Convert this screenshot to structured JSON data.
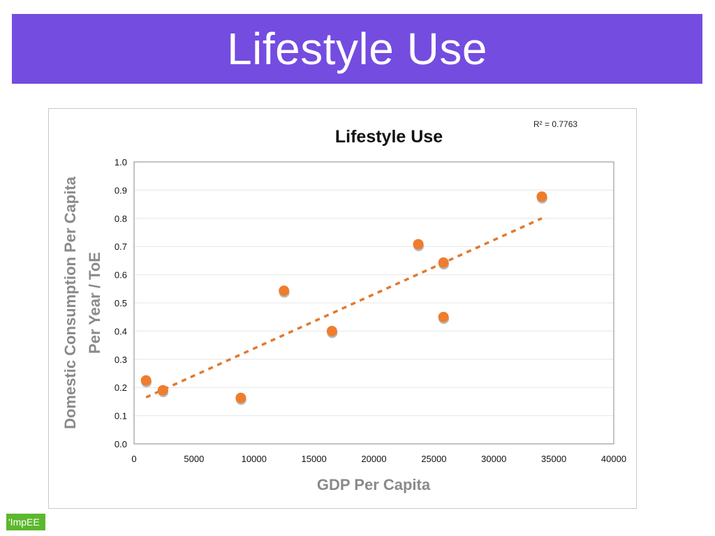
{
  "slide": {
    "title": "Lifestyle Use",
    "logo_text": "'ImpEE"
  },
  "chart_data": {
    "type": "scatter",
    "title": "Lifestyle Use",
    "xlabel": "GDP Per Capita",
    "ylabel_line1": "Domestic Consumption Per Capita",
    "ylabel_line2": "Per Year / ToE",
    "xlim": [
      0,
      40000
    ],
    "ylim": [
      0,
      1.0
    ],
    "x_ticks": [
      0,
      5000,
      10000,
      15000,
      20000,
      25000,
      30000,
      35000,
      40000
    ],
    "y_ticks": [
      0.0,
      0.1,
      0.2,
      0.3,
      0.4,
      0.5,
      0.6,
      0.7,
      0.8,
      0.9,
      1.0
    ],
    "x_tick_labels": [
      "0",
      "5000",
      "10000",
      "15000",
      "20000",
      "25000",
      "30000",
      "35000",
      "40000"
    ],
    "y_tick_labels": [
      "0.0",
      "0.1",
      "0.2",
      "0.3",
      "0.4",
      "0.5",
      "0.6",
      "0.7",
      "0.8",
      "0.9",
      "1.0"
    ],
    "grid": true,
    "points": [
      {
        "x": 1000,
        "y": 0.225
      },
      {
        "x": 2400,
        "y": 0.19
      },
      {
        "x": 8900,
        "y": 0.163
      },
      {
        "x": 12500,
        "y": 0.543
      },
      {
        "x": 16500,
        "y": 0.4
      },
      {
        "x": 23700,
        "y": 0.708
      },
      {
        "x": 25800,
        "y": 0.643
      },
      {
        "x": 25800,
        "y": 0.45
      },
      {
        "x": 34000,
        "y": 0.877
      }
    ],
    "trendline": {
      "x_start": 1000,
      "y_start": 0.165,
      "x_end": 34000,
      "y_end": 0.8
    },
    "annotation": "R² = 0.7763",
    "point_color": "#ee7d2e",
    "trend_color": "#e07a2f"
  }
}
